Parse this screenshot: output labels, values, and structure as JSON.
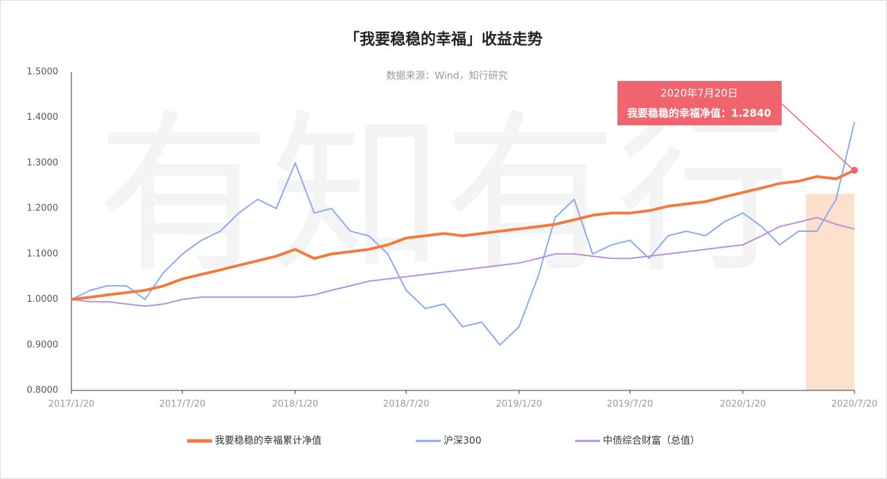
{
  "chart_data": {
    "type": "line",
    "title": "「我要稳稳的幸福」收益走势",
    "subtitle": "数据来源：Wind，知行研究",
    "watermark": "有知有行",
    "annotation": [
      "2020年7月20日",
      "我要稳稳的幸福净值：1.2840"
    ],
    "x": [
      "2017/1/20",
      "2017/2/20",
      "2017/3/20",
      "2017/4/20",
      "2017/5/20",
      "2017/6/20",
      "2017/7/20",
      "2017/8/20",
      "2017/9/20",
      "2017/10/20",
      "2017/11/20",
      "2017/12/20",
      "2018/1/20",
      "2018/2/20",
      "2018/3/20",
      "2018/4/20",
      "2018/5/20",
      "2018/6/20",
      "2018/7/20",
      "2018/8/20",
      "2018/9/20",
      "2018/10/20",
      "2018/11/20",
      "2018/12/20",
      "2019/1/20",
      "2019/2/20",
      "2019/3/20",
      "2019/4/20",
      "2019/5/20",
      "2019/6/20",
      "2019/7/20",
      "2019/8/20",
      "2019/9/20",
      "2019/10/20",
      "2019/11/20",
      "2019/12/20",
      "2020/1/20",
      "2020/2/20",
      "2020/3/20",
      "2020/4/20",
      "2020/5/20",
      "2020/6/20",
      "2020/7/20"
    ],
    "series": [
      {
        "name": "我要稳稳的幸福累计净值",
        "color": "#f47a3c",
        "width": 4,
        "values": [
          1.0,
          1.005,
          1.01,
          1.015,
          1.02,
          1.03,
          1.045,
          1.055,
          1.065,
          1.075,
          1.085,
          1.095,
          1.11,
          1.09,
          1.1,
          1.105,
          1.11,
          1.12,
          1.135,
          1.14,
          1.145,
          1.14,
          1.145,
          1.15,
          1.155,
          1.16,
          1.165,
          1.175,
          1.185,
          1.19,
          1.19,
          1.195,
          1.205,
          1.21,
          1.215,
          1.225,
          1.235,
          1.245,
          1.255,
          1.26,
          1.27,
          1.265,
          1.284
        ]
      },
      {
        "name": "沪深300",
        "color": "#8aa8f5",
        "width": 2,
        "values": [
          1.0,
          1.02,
          1.03,
          1.03,
          1.0,
          1.06,
          1.1,
          1.13,
          1.15,
          1.19,
          1.22,
          1.2,
          1.3,
          1.19,
          1.2,
          1.15,
          1.14,
          1.1,
          1.02,
          0.98,
          0.99,
          0.94,
          0.95,
          0.9,
          0.94,
          1.05,
          1.18,
          1.22,
          1.1,
          1.12,
          1.13,
          1.09,
          1.14,
          1.15,
          1.14,
          1.17,
          1.19,
          1.16,
          1.12,
          1.15,
          1.15,
          1.22,
          1.39
        ]
      },
      {
        "name": "中债综合财富（总值）",
        "color": "#b98ee0",
        "width": 2,
        "values": [
          1.0,
          0.995,
          0.995,
          0.99,
          0.985,
          0.99,
          1.0,
          1.005,
          1.005,
          1.005,
          1.005,
          1.005,
          1.005,
          1.01,
          1.02,
          1.03,
          1.04,
          1.045,
          1.05,
          1.055,
          1.06,
          1.065,
          1.07,
          1.075,
          1.08,
          1.09,
          1.1,
          1.1,
          1.095,
          1.09,
          1.09,
          1.095,
          1.1,
          1.105,
          1.11,
          1.115,
          1.12,
          1.14,
          1.16,
          1.17,
          1.18,
          1.165,
          1.155
        ]
      }
    ],
    "xlim": [
      "2017/1/20",
      "2020/7/20"
    ],
    "xticks": [
      "2017/1/20",
      "2017/7/20",
      "2018/1/20",
      "2018/7/20",
      "2019/1/20",
      "2019/7/20",
      "2020/1/20",
      "2020/7/20"
    ],
    "ylim": [
      0.8,
      1.5
    ],
    "yticks": [
      {
        "value": 0.8,
        "label": "0.8000"
      },
      {
        "value": 0.9,
        "label": "0.9000"
      },
      {
        "value": 1.0,
        "label": "1.0000"
      },
      {
        "value": 1.1,
        "label": "1.1000"
      },
      {
        "value": 1.2,
        "label": "1.2000"
      },
      {
        "value": 1.3,
        "label": "1.3000"
      },
      {
        "value": 1.4,
        "label": "1.4000"
      },
      {
        "value": 1.5,
        "label": "1.5000"
      }
    ]
  }
}
